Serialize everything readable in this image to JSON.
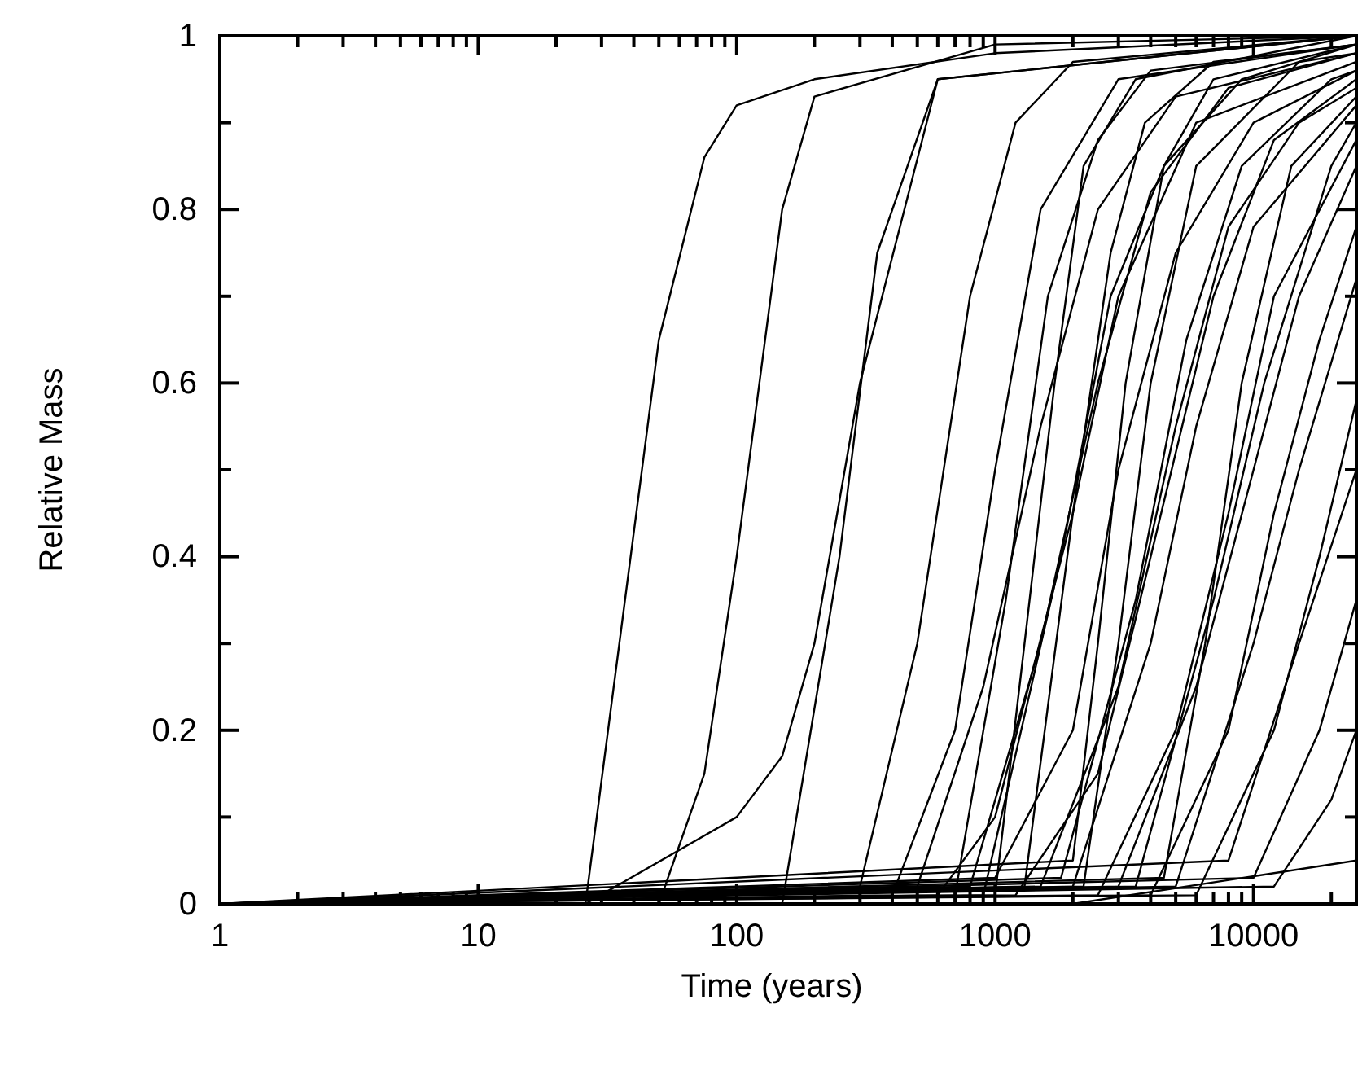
{
  "chart_data": {
    "type": "line",
    "xlabel": "Time (years)",
    "ylabel": "Relative Mass",
    "log": "x",
    "grid": false,
    "marker": "none",
    "line_style": "solid",
    "xlim": [
      1,
      25000
    ],
    "ylim": [
      0,
      1
    ],
    "xticks": [
      1,
      {
        "value": 2,
        "label": null
      },
      {
        "value": 3,
        "label": null
      },
      {
        "value": 4,
        "label": null
      },
      {
        "value": 5,
        "label": null
      },
      {
        "value": 6,
        "label": null
      },
      {
        "value": 7,
        "label": null
      },
      {
        "value": 8,
        "label": null
      },
      {
        "value": 9,
        "label": null
      },
      10,
      {
        "value": 20,
        "label": null
      },
      {
        "value": 30,
        "label": null
      },
      {
        "value": 40,
        "label": null
      },
      {
        "value": 50,
        "label": null
      },
      {
        "value": 60,
        "label": null
      },
      {
        "value": 70,
        "label": null
      },
      {
        "value": 80,
        "label": null
      },
      {
        "value": 90,
        "label": null
      },
      100,
      {
        "value": 200,
        "label": null
      },
      {
        "value": 300,
        "label": null
      },
      {
        "value": 400,
        "label": null
      },
      {
        "value": 500,
        "label": null
      },
      {
        "value": 600,
        "label": null
      },
      {
        "value": 700,
        "label": null
      },
      {
        "value": 800,
        "label": null
      },
      {
        "value": 900,
        "label": null
      },
      1000,
      {
        "value": 2000,
        "label": null
      },
      {
        "value": 3000,
        "label": null
      },
      {
        "value": 4000,
        "label": null
      },
      {
        "value": 5000,
        "label": null
      },
      {
        "value": 6000,
        "label": null
      },
      {
        "value": 7000,
        "label": null
      },
      {
        "value": 8000,
        "label": null
      },
      {
        "value": 9000,
        "label": null
      },
      10000,
      {
        "value": 20000,
        "label": null
      }
    ],
    "yticks": [
      0,
      {
        "value": 0.1,
        "label": null
      },
      0.2,
      {
        "value": 0.3,
        "label": null
      },
      0.4,
      {
        "value": 0.5,
        "label": null
      },
      0.6,
      {
        "value": 0.7,
        "label": null
      },
      0.8,
      {
        "value": 0.9,
        "label": null
      },
      1
    ],
    "series": [
      {
        "color": "#000000",
        "x": [
          1,
          26,
          50,
          75,
          100,
          200,
          1000,
          25000
        ],
        "values": [
          0,
          0,
          0.65,
          0.86,
          0.92,
          0.95,
          0.98,
          1
        ]
      },
      {
        "color": "#000000",
        "x": [
          1,
          26,
          100,
          150,
          200,
          300,
          600,
          25000
        ],
        "values": [
          0,
          0,
          0.1,
          0.17,
          0.3,
          0.6,
          0.95,
          1
        ]
      },
      {
        "color": "#000000",
        "x": [
          1,
          50,
          75,
          100,
          150,
          200,
          1000,
          25000
        ],
        "values": [
          0,
          0,
          0.15,
          0.4,
          0.8,
          0.93,
          0.99,
          1
        ]
      },
      {
        "color": "#000000",
        "x": [
          1,
          150,
          250,
          350,
          600,
          25000
        ],
        "values": [
          0,
          0,
          0.4,
          0.75,
          0.95,
          1
        ]
      },
      {
        "color": "#000000",
        "x": [
          1,
          300,
          500,
          800,
          1200,
          2000,
          25000
        ],
        "values": [
          0,
          0.02,
          0.3,
          0.7,
          0.9,
          0.97,
          1
        ]
      },
      {
        "color": "#000000",
        "x": [
          1,
          400,
          700,
          1000,
          1500,
          3000,
          25000
        ],
        "values": [
          0,
          0.01,
          0.2,
          0.5,
          0.8,
          0.95,
          0.99
        ]
      },
      {
        "color": "#000000",
        "x": [
          1,
          500,
          900,
          1500,
          2500,
          5000,
          25000
        ],
        "values": [
          0,
          0.02,
          0.25,
          0.55,
          0.8,
          0.93,
          0.98
        ]
      },
      {
        "color": "#000000",
        "x": [
          1,
          600,
          1000,
          2000,
          3000,
          6000,
          25000
        ],
        "values": [
          0,
          0.01,
          0.1,
          0.45,
          0.7,
          0.9,
          0.97
        ]
      },
      {
        "color": "#000000",
        "x": [
          1,
          800,
          1500,
          2500,
          4000,
          8000,
          25000
        ],
        "values": [
          0,
          0.02,
          0.3,
          0.6,
          0.82,
          0.94,
          0.98
        ]
      },
      {
        "color": "#000000",
        "x": [
          1,
          1000,
          2000,
          3000,
          5000,
          10000,
          25000
        ],
        "values": [
          0,
          0.03,
          0.2,
          0.5,
          0.75,
          0.9,
          0.96
        ]
      },
      {
        "color": "#000000",
        "x": [
          1,
          1200,
          2500,
          4000,
          7000,
          12000,
          25000
        ],
        "values": [
          0,
          0.01,
          0.15,
          0.4,
          0.7,
          0.88,
          0.95
        ]
      },
      {
        "color": "#000000",
        "x": [
          1,
          1500,
          3000,
          5000,
          8000,
          15000,
          25000
        ],
        "values": [
          0,
          0.02,
          0.25,
          0.55,
          0.78,
          0.9,
          0.94
        ]
      },
      {
        "color": "#000000",
        "x": [
          1,
          2000,
          4000,
          6000,
          10000,
          25000
        ],
        "values": [
          0,
          0.02,
          0.3,
          0.55,
          0.78,
          0.92
        ]
      },
      {
        "color": "#000000",
        "x": [
          1,
          2500,
          5000,
          8000,
          12000,
          25000
        ],
        "values": [
          0,
          0.01,
          0.2,
          0.45,
          0.7,
          0.88
        ]
      },
      {
        "color": "#000000",
        "x": [
          1,
          3000,
          6000,
          10000,
          15000,
          25000
        ],
        "values": [
          0,
          0.02,
          0.25,
          0.5,
          0.7,
          0.85
        ]
      },
      {
        "color": "#000000",
        "x": [
          1,
          4000,
          8000,
          12000,
          18000,
          25000
        ],
        "values": [
          0,
          0.01,
          0.2,
          0.45,
          0.65,
          0.78
        ]
      },
      {
        "color": "#000000",
        "x": [
          1,
          5000,
          10000,
          15000,
          25000
        ],
        "values": [
          0,
          0.02,
          0.3,
          0.5,
          0.72
        ]
      },
      {
        "color": "#000000",
        "x": [
          1,
          6000,
          12000,
          18000,
          25000
        ],
        "values": [
          0,
          0.01,
          0.2,
          0.4,
          0.58
        ]
      },
      {
        "color": "#000000",
        "x": [
          1,
          8000,
          15000,
          25000
        ],
        "values": [
          0,
          0.05,
          0.3,
          0.5
        ]
      },
      {
        "color": "#000000",
        "x": [
          1,
          10000,
          18000,
          25000
        ],
        "values": [
          0,
          0.03,
          0.2,
          0.35
        ]
      },
      {
        "color": "#000000",
        "x": [
          1,
          12000,
          20000,
          25000
        ],
        "values": [
          0,
          0.02,
          0.12,
          0.2
        ]
      },
      {
        "color": "#000000",
        "x": [
          1,
          700,
          1100,
          1600,
          2500,
          4000,
          25000
        ],
        "values": [
          0,
          0.01,
          0.35,
          0.7,
          0.88,
          0.96,
          0.99
        ]
      },
      {
        "color": "#000000",
        "x": [
          1,
          900,
          1800,
          2800,
          4500,
          9000,
          25000
        ],
        "values": [
          0,
          0.01,
          0.4,
          0.7,
          0.85,
          0.95,
          0.99
        ]
      },
      {
        "color": "#000000",
        "x": [
          1,
          1800,
          3500,
          5500,
          9000,
          20000,
          25000
        ],
        "values": [
          0,
          0.03,
          0.35,
          0.65,
          0.85,
          0.95,
          0.96
        ]
      },
      {
        "color": "#000000",
        "x": [
          1,
          2200,
          3000,
          4000,
          6000,
          15000,
          25000
        ],
        "values": [
          0,
          0.02,
          0.3,
          0.6,
          0.85,
          0.97,
          0.98
        ]
      },
      {
        "color": "#000000",
        "x": [
          1,
          3500,
          7000,
          11000,
          20000,
          25000
        ],
        "values": [
          0,
          0.02,
          0.35,
          0.6,
          0.85,
          0.9
        ]
      },
      {
        "color": "#000000",
        "x": [
          1,
          1000,
          1300,
          1700,
          2200,
          3500,
          25000
        ],
        "values": [
          0,
          0.01,
          0.3,
          0.6,
          0.85,
          0.95,
          1
        ]
      },
      {
        "color": "#000000",
        "x": [
          1,
          1300,
          2000,
          2800,
          3800,
          7000,
          25000
        ],
        "values": [
          0,
          0.02,
          0.45,
          0.75,
          0.9,
          0.97,
          0.99
        ]
      },
      {
        "color": "#000000",
        "x": [
          1,
          2000,
          2500,
          3200,
          4500,
          7000,
          25000
        ],
        "values": [
          0,
          0.05,
          0.3,
          0.6,
          0.85,
          0.95,
          0.99
        ]
      },
      {
        "color": "#000000",
        "x": [
          1,
          4500,
          6500,
          9000,
          14000,
          25000
        ],
        "values": [
          0,
          0.03,
          0.3,
          0.6,
          0.85,
          0.93
        ]
      },
      {
        "color": "#000000",
        "x": [
          1,
          2000,
          25000
        ],
        "values": [
          0,
          0,
          0.05
        ]
      }
    ]
  }
}
